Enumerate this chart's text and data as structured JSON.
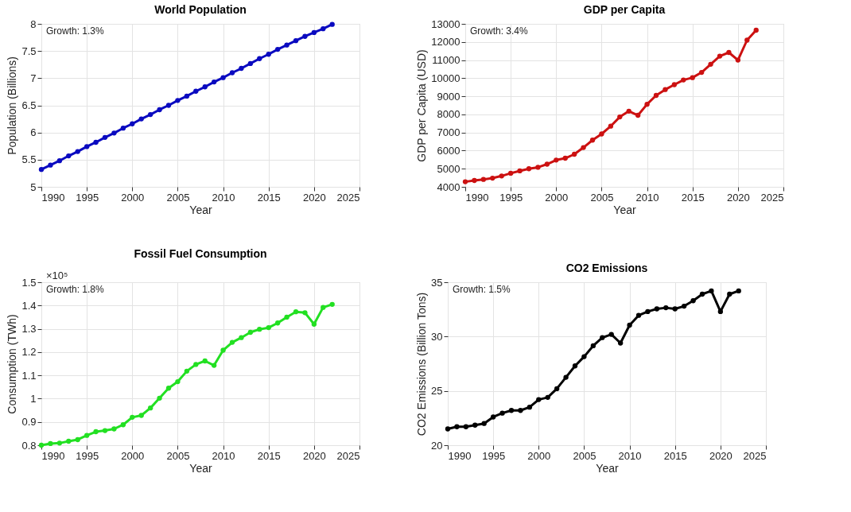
{
  "chart_data": [
    {
      "type": "line",
      "title": "World Population",
      "xlabel": "Year",
      "ylabel": "Population (Billions)",
      "annotations": [
        "Growth: 1.3%"
      ],
      "x": [
        1990,
        1991,
        1992,
        1993,
        1994,
        1995,
        1996,
        1997,
        1998,
        1999,
        2000,
        2001,
        2002,
        2003,
        2004,
        2005,
        2006,
        2007,
        2008,
        2009,
        2010,
        2011,
        2012,
        2013,
        2014,
        2015,
        2016,
        2017,
        2018,
        2019,
        2020,
        2021,
        2022
      ],
      "series": [
        {
          "color": "#0a0ac0",
          "values": [
            5.32,
            5.4,
            5.48,
            5.57,
            5.65,
            5.74,
            5.82,
            5.91,
            5.99,
            6.08,
            6.16,
            6.25,
            6.33,
            6.42,
            6.5,
            6.59,
            6.67,
            6.76,
            6.84,
            6.93,
            7.01,
            7.1,
            7.18,
            7.27,
            7.36,
            7.44,
            7.53,
            7.61,
            7.69,
            7.77,
            7.84,
            7.91,
            7.99
          ]
        }
      ],
      "xlim": [
        1990,
        2025
      ],
      "xticks": [
        1990,
        1995,
        2000,
        2005,
        2010,
        2015,
        2020,
        2025
      ],
      "ylim": [
        5,
        8
      ],
      "yticks": [
        5,
        5.5,
        6,
        6.5,
        7,
        7.5,
        8
      ],
      "grid": true,
      "marker": "circle",
      "line_style": "solid"
    },
    {
      "type": "line",
      "title": "GDP per Capita",
      "xlabel": "Year",
      "ylabel": "GDP per Capita (USD)",
      "annotations": [
        "Growth: 3.4%"
      ],
      "x": [
        1990,
        1991,
        1992,
        1993,
        1994,
        1995,
        1996,
        1997,
        1998,
        1999,
        2000,
        2001,
        2002,
        2003,
        2004,
        2005,
        2006,
        2007,
        2008,
        2009,
        2010,
        2011,
        2012,
        2013,
        2014,
        2015,
        2016,
        2017,
        2018,
        2019,
        2020,
        2021,
        2022
      ],
      "series": [
        {
          "color": "#cc1111",
          "values": [
            4280,
            4350,
            4410,
            4480,
            4600,
            4750,
            4880,
            5000,
            5080,
            5250,
            5480,
            5580,
            5800,
            6170,
            6580,
            6920,
            7350,
            7860,
            8180,
            7950,
            8560,
            9050,
            9370,
            9640,
            9900,
            10030,
            10320,
            10770,
            11220,
            11420,
            11000,
            12100,
            12650
          ]
        }
      ],
      "xlim": [
        1990,
        2025
      ],
      "xticks": [
        1990,
        1995,
        2000,
        2005,
        2010,
        2015,
        2020,
        2025
      ],
      "ylim": [
        4000,
        13000
      ],
      "yticks": [
        4000,
        5000,
        6000,
        7000,
        8000,
        9000,
        10000,
        11000,
        12000,
        13000
      ],
      "grid": true,
      "marker": "circle",
      "line_style": "solid"
    },
    {
      "type": "line",
      "title": "Fossil Fuel Consumption",
      "xlabel": "Year",
      "ylabel": "Consumption (TWh)",
      "annotations": [
        "×10⁵",
        "Growth: 1.8%"
      ],
      "x": [
        1990,
        1991,
        1992,
        1993,
        1994,
        1995,
        1996,
        1997,
        1998,
        1999,
        2000,
        2001,
        2002,
        2003,
        2004,
        2005,
        2006,
        2007,
        2008,
        2009,
        2010,
        2011,
        2012,
        2013,
        2014,
        2015,
        2016,
        2017,
        2018,
        2019,
        2020,
        2021,
        2022
      ],
      "series": [
        {
          "color": "#22e022",
          "values": [
            0.8,
            0.807,
            0.809,
            0.817,
            0.824,
            0.842,
            0.858,
            0.863,
            0.87,
            0.888,
            0.92,
            0.928,
            0.96,
            1.002,
            1.045,
            1.073,
            1.118,
            1.147,
            1.162,
            1.143,
            1.208,
            1.242,
            1.262,
            1.285,
            1.298,
            1.305,
            1.325,
            1.35,
            1.373,
            1.369,
            1.32,
            1.392,
            1.405
          ]
        }
      ],
      "xlim": [
        1990,
        2025
      ],
      "xticks": [
        1990,
        1995,
        2000,
        2005,
        2010,
        2015,
        2020,
        2025
      ],
      "ylim": [
        0.8,
        1.5
      ],
      "yticks": [
        0.8,
        0.9,
        1,
        1.1,
        1.2,
        1.3,
        1.4,
        1.5
      ],
      "grid": true,
      "marker": "circle",
      "line_style": "solid"
    },
    {
      "type": "line",
      "title": "CO2 Emissions",
      "xlabel": "Year",
      "ylabel": "CO2 Emissions (Billion Tons)",
      "annotations": [
        "Growth: 1.5%"
      ],
      "x": [
        1990,
        1991,
        1992,
        1993,
        1994,
        1995,
        1996,
        1997,
        1998,
        1999,
        2000,
        2001,
        2002,
        2003,
        2004,
        2005,
        2006,
        2007,
        2008,
        2009,
        2010,
        2011,
        2012,
        2013,
        2014,
        2015,
        2016,
        2017,
        2018,
        2019,
        2020,
        2021,
        2022
      ],
      "series": [
        {
          "color": "#000000",
          "values": [
            21.5,
            21.7,
            21.7,
            21.85,
            22.0,
            22.6,
            22.95,
            23.2,
            23.2,
            23.5,
            24.2,
            24.4,
            25.2,
            26.25,
            27.3,
            28.15,
            29.15,
            29.9,
            30.2,
            29.4,
            31.05,
            31.95,
            32.3,
            32.55,
            32.65,
            32.55,
            32.8,
            33.3,
            33.9,
            34.2,
            32.3,
            33.9,
            34.2
          ]
        }
      ],
      "xlim": [
        1990,
        2025
      ],
      "xticks": [
        1990,
        1995,
        2000,
        2005,
        2010,
        2015,
        2020,
        2025
      ],
      "ylim": [
        20,
        35
      ],
      "yticks": [
        20,
        25,
        30,
        35
      ],
      "grid": true,
      "marker": "circle",
      "line_style": "solid"
    }
  ]
}
